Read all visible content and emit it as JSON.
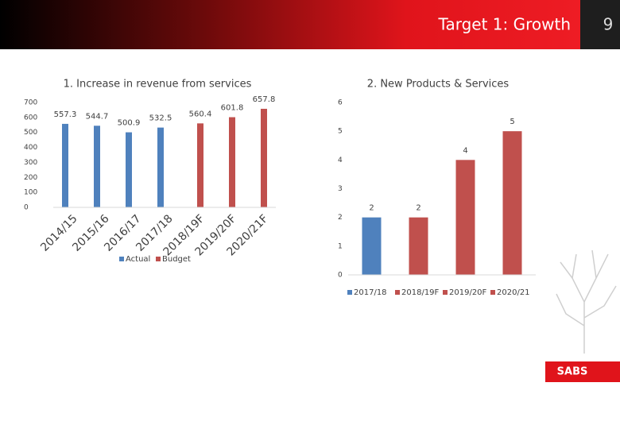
{
  "header": {
    "title": "Target 1: Growth",
    "page": "9",
    "logo": "SABS"
  },
  "chart_data": [
    {
      "type": "bar",
      "title": "1. Increase in revenue from services",
      "categories": [
        "2014/15",
        "2015/16",
        "2016/17",
        "2017/18",
        "2018/19F",
        "2019/20F",
        "2020/21F"
      ],
      "series": [
        {
          "name": "Actual",
          "color": "#4f81bd",
          "values": [
            557.3,
            544.7,
            500.9,
            532.5,
            null,
            null,
            null
          ]
        },
        {
          "name": "Budget",
          "color": "#c0504d",
          "values": [
            null,
            null,
            null,
            null,
            560.4,
            601.8,
            657.8
          ]
        }
      ],
      "ylim": [
        0,
        700
      ],
      "yticks": [
        0,
        100,
        200,
        300,
        400,
        500,
        600,
        700
      ],
      "grid": false,
      "legend": "bottom"
    },
    {
      "type": "bar",
      "title": "2. New Products & Services",
      "categories": [
        "2017/18",
        "2018/19F",
        "2019/20F",
        "2020/21"
      ],
      "values": [
        2,
        2,
        4,
        5
      ],
      "colors": [
        "#4f81bd",
        "#c0504d",
        "#c0504d",
        "#c0504d"
      ],
      "ylim": [
        0,
        6
      ],
      "yticks": [
        0,
        1,
        2,
        3,
        4,
        5,
        6
      ],
      "grid": false,
      "legend": "bottom"
    }
  ]
}
